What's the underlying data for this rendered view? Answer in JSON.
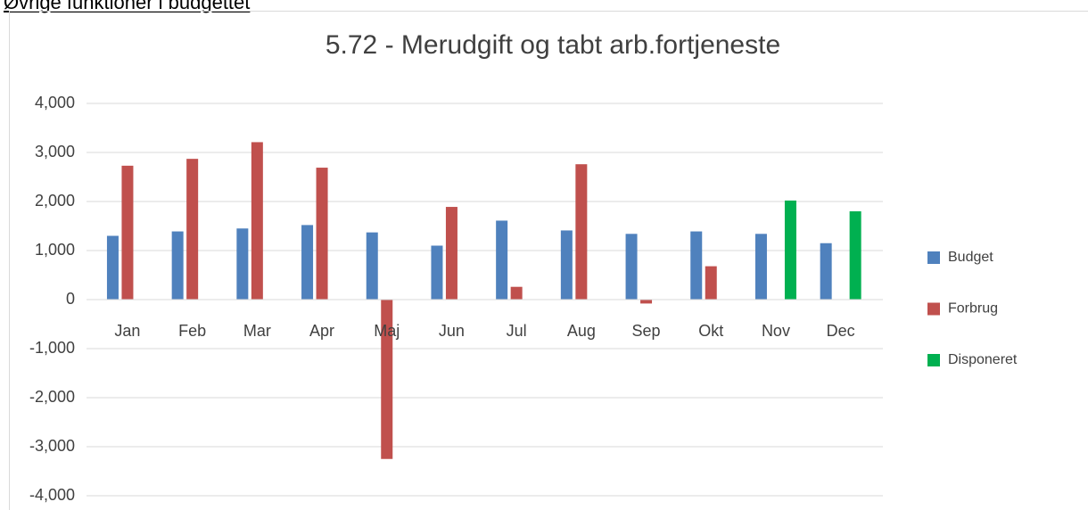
{
  "header": {
    "title": "Øvrige funktioner i budgettet"
  },
  "chart_data": {
    "type": "bar",
    "title": "5.72 - Merudgift og tabt arb.fortjeneste",
    "categories": [
      "Jan",
      "Feb",
      "Mar",
      "Apr",
      "Maj",
      "Jun",
      "Jul",
      "Aug",
      "Sep",
      "Okt",
      "Nov",
      "Dec"
    ],
    "series": [
      {
        "name": "Budget",
        "color": "#4f81bd",
        "values": [
          1300,
          1390,
          1450,
          1520,
          1370,
          1100,
          1610,
          1410,
          1340,
          1390,
          1340,
          1150
        ]
      },
      {
        "name": "Forbrug",
        "color": "#c0504d",
        "values": [
          2730,
          2870,
          3210,
          2690,
          -3250,
          1890,
          260,
          2760,
          -80,
          680,
          null,
          null
        ]
      },
      {
        "name": "Disponeret",
        "color": "#00b050",
        "values": [
          null,
          null,
          null,
          null,
          null,
          null,
          null,
          null,
          null,
          null,
          2020,
          1800
        ]
      }
    ],
    "ylim": [
      -4000,
      4000
    ],
    "yticks": [
      {
        "value": -4000,
        "label": "-4,000"
      },
      {
        "value": -3000,
        "label": "-3,000"
      },
      {
        "value": -2000,
        "label": "-2,000"
      },
      {
        "value": -1000,
        "label": "-1,000"
      },
      0,
      {
        "value": 1000,
        "label": "1,000"
      },
      {
        "value": 2000,
        "label": "2,000"
      },
      {
        "value": 3000,
        "label": "3,000"
      },
      {
        "value": 4000,
        "label": "4,000"
      }
    ],
    "grid": true,
    "legend": "right"
  }
}
